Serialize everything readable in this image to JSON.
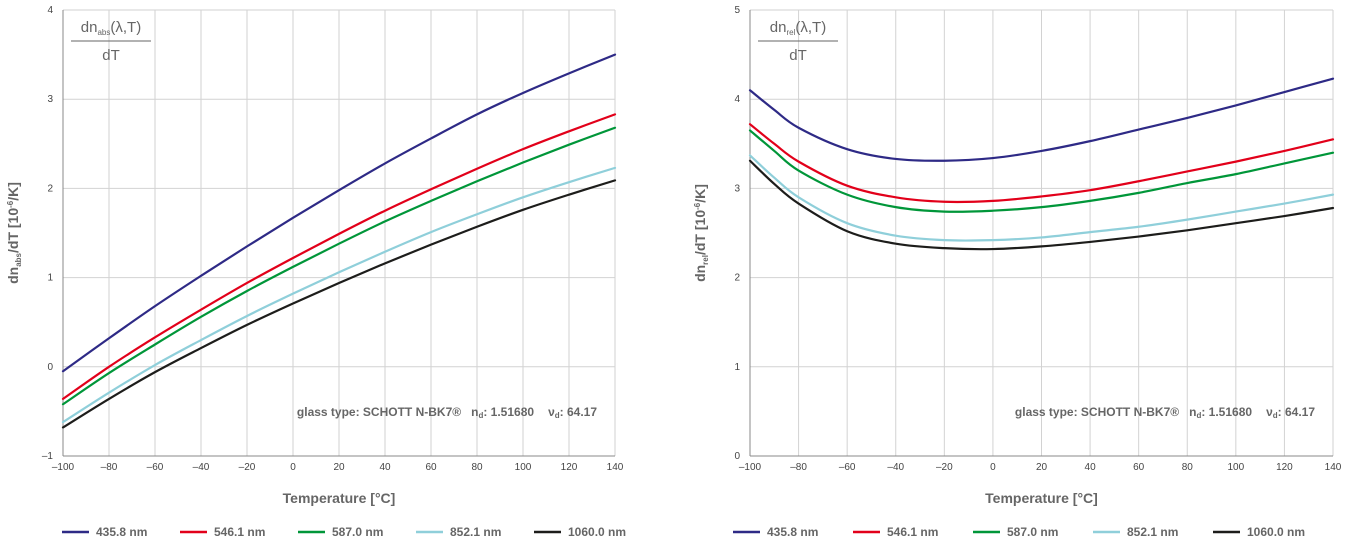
{
  "chart_data": [
    {
      "type": "line",
      "formula": {
        "numerator_main": "dn",
        "numerator_sub": "abs",
        "numerator_tail": "(λ,T)",
        "denominator": "dT"
      },
      "ylabel": {
        "main": "dn",
        "sub": "abs",
        "tail": "/dT [10",
        "sup": "-6",
        "end": "/K]"
      },
      "xlabel": "Temperature [°C]",
      "xlim": [
        -100,
        140
      ],
      "ylim": [
        -1,
        4
      ],
      "xticks": [
        "–100",
        "–80",
        "–60",
        "–40",
        "–20",
        "0",
        "20",
        "40",
        "60",
        "80",
        "100",
        "120",
        "140"
      ],
      "yticks": [
        "–1",
        "0",
        "1",
        "2",
        "3",
        "4"
      ],
      "grid": true,
      "annotation": {
        "glass_type": "glass type: SCHOTT N-BK7®",
        "nd_label": "n",
        "nd_sub": "d",
        "nd_value": ": 1.51680",
        "vd_label": "ν",
        "vd_sub": "d",
        "vd_value": ": 64.17"
      },
      "x": [
        -100,
        -80,
        -60,
        -40,
        -20,
        0,
        20,
        40,
        60,
        80,
        100,
        120,
        140
      ],
      "series": [
        {
          "name": "435.8 nm",
          "color": "#2e2a86",
          "values": [
            -0.05,
            0.32,
            0.68,
            1.02,
            1.35,
            1.67,
            1.98,
            2.28,
            2.56,
            2.83,
            3.07,
            3.29,
            3.5
          ]
        },
        {
          "name": "546.1 nm",
          "color": "#e2001a",
          "values": [
            -0.36,
            0.0,
            0.33,
            0.64,
            0.94,
            1.22,
            1.49,
            1.75,
            1.99,
            2.22,
            2.44,
            2.64,
            2.83
          ]
        },
        {
          "name": "587.0 nm",
          "color": "#009639",
          "values": [
            -0.42,
            -0.07,
            0.25,
            0.56,
            0.85,
            1.12,
            1.38,
            1.63,
            1.86,
            2.08,
            2.29,
            2.49,
            2.68
          ]
        },
        {
          "name": "852.1 nm",
          "color": "#8fcfda",
          "values": [
            -0.62,
            -0.29,
            0.02,
            0.3,
            0.57,
            0.82,
            1.06,
            1.29,
            1.51,
            1.71,
            1.9,
            2.07,
            2.23
          ]
        },
        {
          "name": "1060.0 nm",
          "color": "#1d1d1b",
          "values": [
            -0.68,
            -0.36,
            -0.06,
            0.21,
            0.47,
            0.71,
            0.94,
            1.16,
            1.37,
            1.57,
            1.76,
            1.93,
            2.09
          ]
        }
      ]
    },
    {
      "type": "line",
      "formula": {
        "numerator_main": "dn",
        "numerator_sub": "rel",
        "numerator_tail": "(λ,T)",
        "denominator": "dT"
      },
      "ylabel": {
        "main": "dn",
        "sub": "rel",
        "tail": "/dT [10",
        "sup": "-6",
        "end": "/K]"
      },
      "xlabel": "Temperature [°C]",
      "xlim": [
        -100,
        140
      ],
      "ylim": [
        0,
        5
      ],
      "xticks": [
        "–100",
        "–80",
        "–60",
        "–40",
        "–20",
        "0",
        "20",
        "40",
        "60",
        "80",
        "100",
        "120",
        "140"
      ],
      "yticks": [
        "0",
        "1",
        "2",
        "3",
        "4",
        "5"
      ],
      "grid": true,
      "annotation": {
        "glass_type": "glass type: SCHOTT N-BK7®",
        "nd_label": "n",
        "nd_sub": "d",
        "nd_value": ": 1.51680",
        "vd_label": "ν",
        "vd_sub": "d",
        "vd_value": ": 64.17"
      },
      "x": [
        -100,
        -90,
        -80,
        -60,
        -40,
        -20,
        0,
        20,
        40,
        60,
        80,
        100,
        120,
        140
      ],
      "series": [
        {
          "name": "435.8 nm",
          "color": "#2e2a86",
          "values": [
            4.1,
            3.88,
            3.68,
            3.44,
            3.33,
            3.31,
            3.34,
            3.42,
            3.53,
            3.66,
            3.79,
            3.93,
            4.08,
            4.23
          ]
        },
        {
          "name": "546.1 nm",
          "color": "#e2001a",
          "values": [
            3.72,
            3.5,
            3.3,
            3.03,
            2.9,
            2.85,
            2.86,
            2.91,
            2.98,
            3.08,
            3.19,
            3.3,
            3.42,
            3.55
          ]
        },
        {
          "name": "587.0 nm",
          "color": "#009639",
          "values": [
            3.65,
            3.42,
            3.2,
            2.93,
            2.79,
            2.74,
            2.75,
            2.79,
            2.86,
            2.95,
            3.06,
            3.16,
            3.28,
            3.4
          ]
        },
        {
          "name": "852.1 nm",
          "color": "#8fcfda",
          "values": [
            3.37,
            3.12,
            2.9,
            2.61,
            2.47,
            2.42,
            2.42,
            2.45,
            2.51,
            2.57,
            2.65,
            2.74,
            2.83,
            2.93
          ]
        },
        {
          "name": "1060.0 nm",
          "color": "#1d1d1b",
          "values": [
            3.31,
            3.05,
            2.83,
            2.52,
            2.38,
            2.33,
            2.32,
            2.35,
            2.4,
            2.46,
            2.53,
            2.61,
            2.69,
            2.78
          ]
        }
      ]
    }
  ]
}
